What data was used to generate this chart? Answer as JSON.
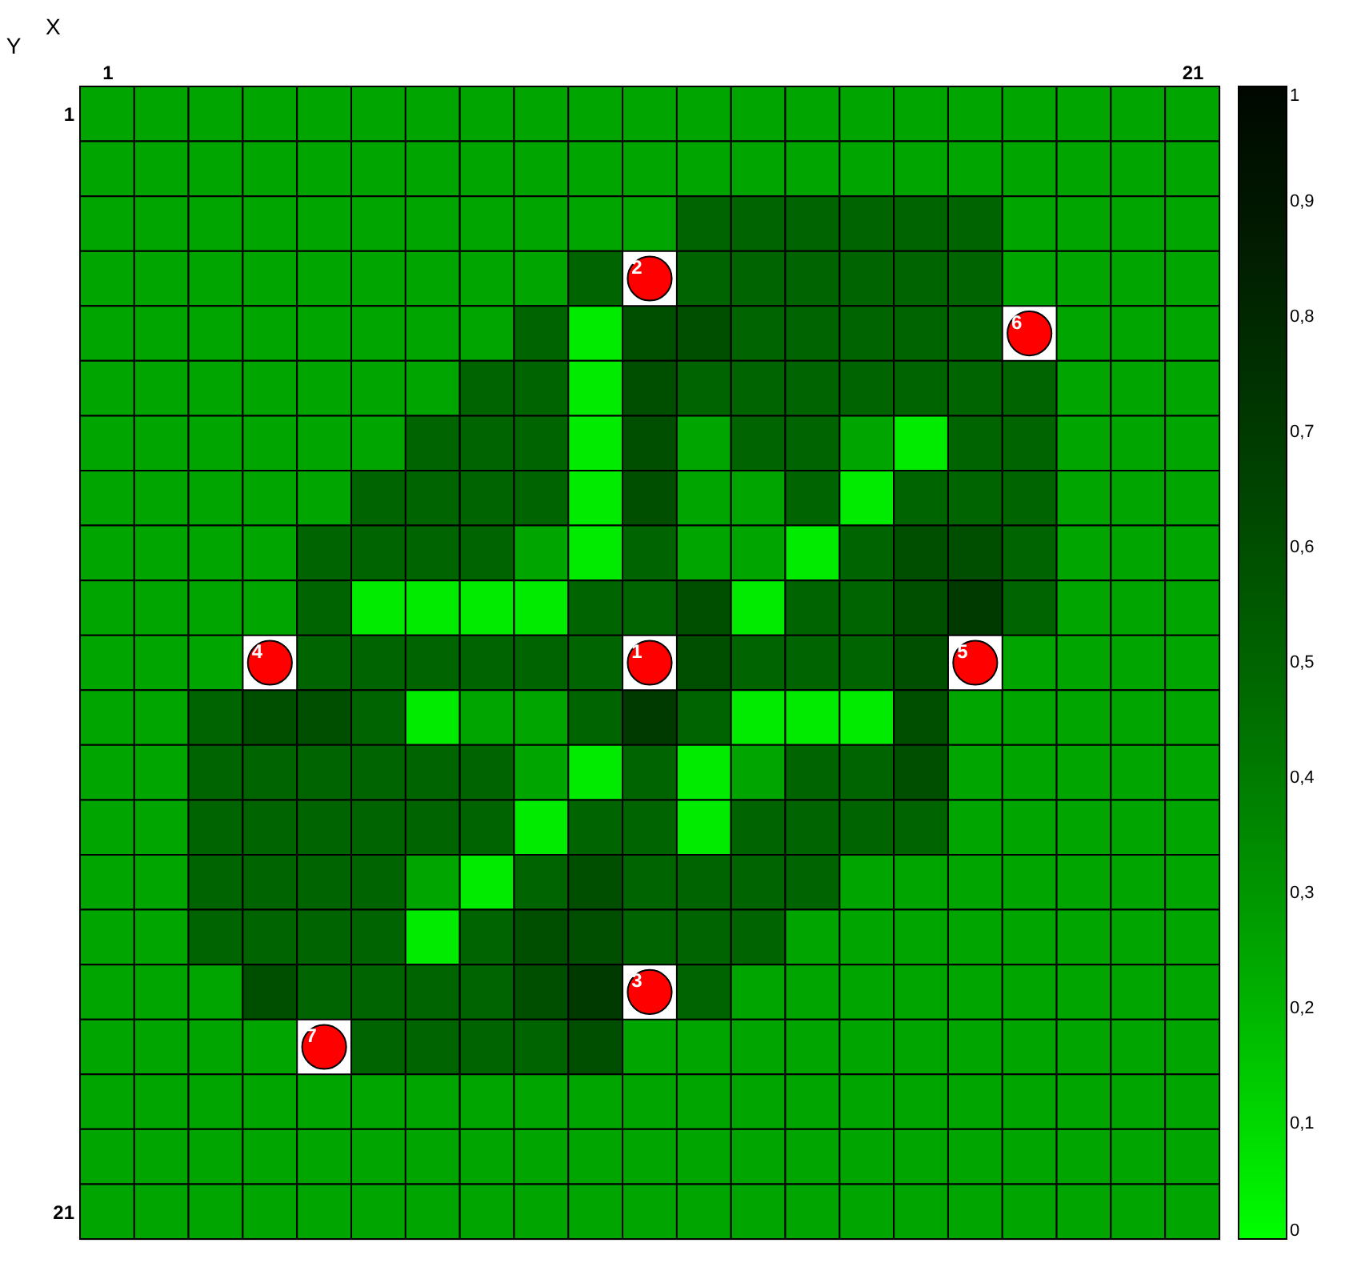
{
  "chart_data": {
    "type": "heatmap",
    "xlabel": "X",
    "ylabel": "Y",
    "x": [
      1,
      2,
      3,
      4,
      5,
      6,
      7,
      8,
      9,
      10,
      11,
      12,
      13,
      14,
      15,
      16,
      17,
      18,
      19,
      20,
      21
    ],
    "xlim": [
      0.5,
      21.5
    ],
    "xticks": [
      1,
      21
    ],
    "ylim": [
      21.5,
      0.5
    ],
    "yticks": [
      1,
      21
    ],
    "cells": [
      [
        0.25,
        0.25,
        0.25,
        0.25,
        0.25,
        0.25,
        0.25,
        0.25,
        0.25,
        0.25,
        0.25,
        0.25,
        0.25,
        0.25,
        0.25,
        0.25,
        0.25,
        0.25,
        0.25,
        0.25,
        0.25
      ],
      [
        0.25,
        0.25,
        0.25,
        0.25,
        0.25,
        0.25,
        0.25,
        0.25,
        0.25,
        0.25,
        0.25,
        0.25,
        0.25,
        0.25,
        0.25,
        0.25,
        0.25,
        0.25,
        0.25,
        0.25,
        0.25
      ],
      [
        0.25,
        0.25,
        0.25,
        0.25,
        0.25,
        0.25,
        0.25,
        0.25,
        0.25,
        0.25,
        0.25,
        0.5,
        0.5,
        0.5,
        0.5,
        0.5,
        0.5,
        0.25,
        0.25,
        0.25,
        0.25
      ],
      [
        0.25,
        0.25,
        0.25,
        0.25,
        0.25,
        0.25,
        0.25,
        0.25,
        0.25,
        0.5,
        null,
        0.5,
        0.5,
        0.5,
        0.5,
        0.5,
        0.5,
        0.25,
        0.25,
        0.25,
        0.25
      ],
      [
        0.25,
        0.25,
        0.25,
        0.25,
        0.25,
        0.25,
        0.25,
        0.25,
        0.5,
        0.05,
        0.6,
        0.6,
        0.5,
        0.5,
        0.5,
        0.5,
        0.5,
        null,
        0.25,
        0.25,
        0.25
      ],
      [
        0.25,
        0.25,
        0.25,
        0.25,
        0.25,
        0.25,
        0.25,
        0.5,
        0.5,
        0.05,
        0.6,
        0.5,
        0.5,
        0.5,
        0.5,
        0.5,
        0.5,
        0.5,
        0.25,
        0.25,
        0.25
      ],
      [
        0.25,
        0.25,
        0.25,
        0.25,
        0.25,
        0.25,
        0.5,
        0.5,
        0.5,
        0.05,
        0.6,
        0.25,
        0.5,
        0.5,
        0.25,
        0.05,
        0.5,
        0.5,
        0.25,
        0.25,
        0.25
      ],
      [
        0.25,
        0.25,
        0.25,
        0.25,
        0.25,
        0.5,
        0.5,
        0.5,
        0.5,
        0.05,
        0.6,
        0.25,
        0.25,
        0.5,
        0.05,
        0.5,
        0.5,
        0.5,
        0.25,
        0.25,
        0.25
      ],
      [
        0.25,
        0.25,
        0.25,
        0.25,
        0.5,
        0.5,
        0.5,
        0.5,
        0.25,
        0.05,
        0.5,
        0.25,
        0.25,
        0.05,
        0.5,
        0.6,
        0.6,
        0.5,
        0.25,
        0.25,
        0.25
      ],
      [
        0.25,
        0.25,
        0.25,
        0.25,
        0.5,
        0.05,
        0.05,
        0.05,
        0.05,
        0.5,
        0.5,
        0.6,
        0.05,
        0.5,
        0.5,
        0.6,
        0.7,
        0.5,
        0.25,
        0.25,
        0.25
      ],
      [
        0.25,
        0.25,
        0.25,
        null,
        0.5,
        0.5,
        0.5,
        0.5,
        0.5,
        0.5,
        null,
        0.6,
        0.5,
        0.5,
        0.5,
        0.6,
        null,
        0.25,
        0.25,
        0.25,
        0.25
      ],
      [
        0.25,
        0.25,
        0.5,
        0.6,
        0.6,
        0.5,
        0.05,
        0.25,
        0.25,
        0.5,
        0.7,
        0.5,
        0.05,
        0.05,
        0.05,
        0.6,
        0.25,
        0.25,
        0.25,
        0.25,
        0.25
      ],
      [
        0.25,
        0.25,
        0.5,
        0.5,
        0.5,
        0.5,
        0.5,
        0.5,
        0.25,
        0.05,
        0.5,
        0.05,
        0.25,
        0.5,
        0.5,
        0.6,
        0.25,
        0.25,
        0.25,
        0.25,
        0.25
      ],
      [
        0.25,
        0.25,
        0.5,
        0.5,
        0.5,
        0.5,
        0.5,
        0.5,
        0.05,
        0.5,
        0.5,
        0.05,
        0.5,
        0.5,
        0.5,
        0.5,
        0.25,
        0.25,
        0.25,
        0.25,
        0.25
      ],
      [
        0.25,
        0.25,
        0.5,
        0.5,
        0.5,
        0.5,
        0.25,
        0.05,
        0.5,
        0.6,
        0.5,
        0.5,
        0.5,
        0.5,
        0.25,
        0.25,
        0.25,
        0.25,
        0.25,
        0.25,
        0.25
      ],
      [
        0.25,
        0.25,
        0.5,
        0.5,
        0.5,
        0.5,
        0.05,
        0.5,
        0.6,
        0.6,
        0.5,
        0.5,
        0.5,
        0.25,
        0.25,
        0.25,
        0.25,
        0.25,
        0.25,
        0.25,
        0.25
      ],
      [
        0.25,
        0.25,
        0.25,
        0.6,
        0.5,
        0.5,
        0.5,
        0.5,
        0.6,
        0.7,
        null,
        0.5,
        0.25,
        0.25,
        0.25,
        0.25,
        0.25,
        0.25,
        0.25,
        0.25,
        0.25
      ],
      [
        0.25,
        0.25,
        0.25,
        0.25,
        null,
        0.5,
        0.5,
        0.5,
        0.5,
        0.6,
        0.25,
        0.25,
        0.25,
        0.25,
        0.25,
        0.25,
        0.25,
        0.25,
        0.25,
        0.25,
        0.25
      ],
      [
        0.25,
        0.25,
        0.25,
        0.25,
        0.25,
        0.25,
        0.25,
        0.25,
        0.25,
        0.25,
        0.25,
        0.25,
        0.25,
        0.25,
        0.25,
        0.25,
        0.25,
        0.25,
        0.25,
        0.25,
        0.25
      ],
      [
        0.25,
        0.25,
        0.25,
        0.25,
        0.25,
        0.25,
        0.25,
        0.25,
        0.25,
        0.25,
        0.25,
        0.25,
        0.25,
        0.25,
        0.25,
        0.25,
        0.25,
        0.25,
        0.25,
        0.25,
        0.25
      ],
      [
        0.25,
        0.25,
        0.25,
        0.25,
        0.25,
        0.25,
        0.25,
        0.25,
        0.25,
        0.25,
        0.25,
        0.25,
        0.25,
        0.25,
        0.25,
        0.25,
        0.25,
        0.25,
        0.25,
        0.25,
        0.25
      ]
    ],
    "clim": [
      0,
      1
    ],
    "cticks": [
      0,
      {
        "value": 0.1,
        "label": "0,1"
      },
      {
        "value": 0.2,
        "label": "0,2"
      },
      {
        "value": 0.3,
        "label": "0,3"
      },
      {
        "value": 0.4,
        "label": "0,4"
      },
      {
        "value": 0.5,
        "label": "0,5"
      },
      {
        "value": 0.6,
        "label": "0,6"
      },
      {
        "value": 0.7,
        "label": "0,7"
      },
      {
        "value": 0.8,
        "label": "0,8"
      },
      {
        "value": 0.9,
        "label": "0,9"
      },
      1
    ],
    "annotations": [
      {
        "text": "1",
        "x": 11,
        "y": 11
      },
      {
        "text": "2",
        "x": 11,
        "y": 4
      },
      {
        "text": "3",
        "x": 11,
        "y": 17
      },
      {
        "text": "4",
        "x": 4,
        "y": 11
      },
      {
        "text": "5",
        "x": 17,
        "y": 11
      },
      {
        "text": "6",
        "x": 18,
        "y": 5
      },
      {
        "text": "7",
        "x": 5,
        "y": 18
      }
    ],
    "relative": false
  }
}
